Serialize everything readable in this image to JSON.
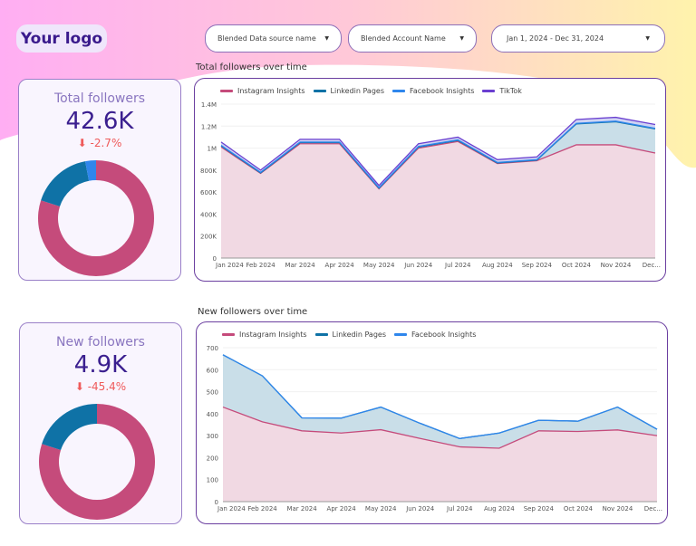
{
  "header": {
    "logo": "Your logo",
    "filters": [
      {
        "label": "Blended Data source name"
      },
      {
        "label": "Blended Account Name"
      },
      {
        "label": "Jan 1, 2024 - Dec 31, 2024"
      }
    ],
    "dropdown_icon": "caret-down-icon"
  },
  "colors": {
    "instagram": "#c54b7b",
    "linkedin": "#0f72a6",
    "facebook": "#2f86ec",
    "tiktok": "#6a3fd0",
    "negative": "#ef5a5a"
  },
  "kpis": [
    {
      "label": "Total followers",
      "value": "42.6K",
      "delta": "-2.7%",
      "delta_icon": "arrow-down-icon",
      "donut": [
        {
          "series": "Instagram Insights",
          "share": 0.8
        },
        {
          "series": "Linkedin Pages",
          "share": 0.17
        },
        {
          "series": "Facebook Insights",
          "share": 0.03
        }
      ]
    },
    {
      "label": "New followers",
      "value": "4.9K",
      "delta": "-45.4%",
      "delta_icon": "arrow-down-icon",
      "donut": [
        {
          "series": "Instagram Insights",
          "share": 0.8
        },
        {
          "series": "Linkedin Pages",
          "share": 0.2
        }
      ]
    }
  ],
  "chart_data": [
    {
      "type": "area",
      "stacked": true,
      "title": "Total followers over time",
      "categories": [
        "Jan 2024",
        "Feb 2024",
        "Mar 2024",
        "Apr 2024",
        "May 2024",
        "Jun 2024",
        "Jul 2024",
        "Aug 2024",
        "Sep 2024",
        "Oct 2024",
        "Nov 2024",
        "Dec..."
      ],
      "ylim": [
        0,
        1400000
      ],
      "yticks": [
        {
          "v": 0,
          "label": "0"
        },
        {
          "v": 200000,
          "label": "200K"
        },
        {
          "v": 400000,
          "label": "400K"
        },
        {
          "v": 600000,
          "label": "600K"
        },
        {
          "v": 800000,
          "label": "800K"
        },
        {
          "v": 1000000,
          "label": "1M"
        },
        {
          "v": 1200000,
          "label": "1.2M"
        },
        {
          "v": 1400000,
          "label": "1.4M"
        }
      ],
      "legend": "top-left",
      "grid": true,
      "series": [
        {
          "name": "Instagram Insights",
          "color": "#c54b7b",
          "fill": "#f1d9e3",
          "values": [
            1010000,
            770000,
            1040000,
            1040000,
            630000,
            1000000,
            1060000,
            860000,
            885000,
            1030000,
            1030000,
            955000
          ]
        },
        {
          "name": "Linkedin Pages",
          "color": "#0f72a6",
          "fill": "#c9dee8",
          "values": [
            10000,
            5000,
            10000,
            10000,
            5000,
            10000,
            10000,
            5000,
            5000,
            190000,
            210000,
            220000
          ]
        },
        {
          "name": "Facebook Insights",
          "color": "#2f86ec",
          "fill": "#c3daf2",
          "values": [
            5000,
            5000,
            5000,
            5000,
            5000,
            5000,
            5000,
            5000,
            5000,
            5000,
            5000,
            5000
          ]
        },
        {
          "name": "TikTok",
          "color": "#6a3fd0",
          "fill": "#cfd3f3",
          "values": [
            30000,
            20000,
            25000,
            25000,
            20000,
            25000,
            25000,
            25000,
            25000,
            35000,
            35000,
            35000
          ]
        }
      ]
    },
    {
      "type": "area",
      "stacked": true,
      "title": "New followers over time",
      "categories": [
        "Jan 2024",
        "Feb 2024",
        "Mar 2024",
        "Apr 2024",
        "May 2024",
        "Jun 2024",
        "Jul 2024",
        "Aug 2024",
        "Sep 2024",
        "Oct 2024",
        "Nov 2024",
        "Dec..."
      ],
      "ylim": [
        0,
        700
      ],
      "yticks": [
        {
          "v": 0,
          "label": "0"
        },
        {
          "v": 100,
          "label": "100"
        },
        {
          "v": 200,
          "label": "200"
        },
        {
          "v": 300,
          "label": "300"
        },
        {
          "v": 400,
          "label": "400"
        },
        {
          "v": 500,
          "label": "500"
        },
        {
          "v": 600,
          "label": "600"
        },
        {
          "v": 700,
          "label": "700"
        }
      ],
      "legend": "top-left",
      "grid": true,
      "series": [
        {
          "name": "Instagram Insights",
          "color": "#c54b7b",
          "fill": "#f1d9e3",
          "values": [
            430,
            363,
            322,
            312,
            327,
            287,
            249,
            243,
            322,
            319,
            326,
            300
          ]
        },
        {
          "name": "Linkedin Pages",
          "color": "#0f72a6",
          "fill": "#c9dee8",
          "values": [
            238,
            209,
            59,
            68,
            103,
            69,
            38,
            69,
            48,
            47,
            104,
            29
          ]
        },
        {
          "name": "Facebook Insights",
          "color": "#2f86ec",
          "fill": "#c3daf2",
          "values": [
            0,
            0,
            0,
            0,
            0,
            0,
            0,
            0,
            0,
            0,
            0,
            0
          ]
        }
      ]
    }
  ]
}
